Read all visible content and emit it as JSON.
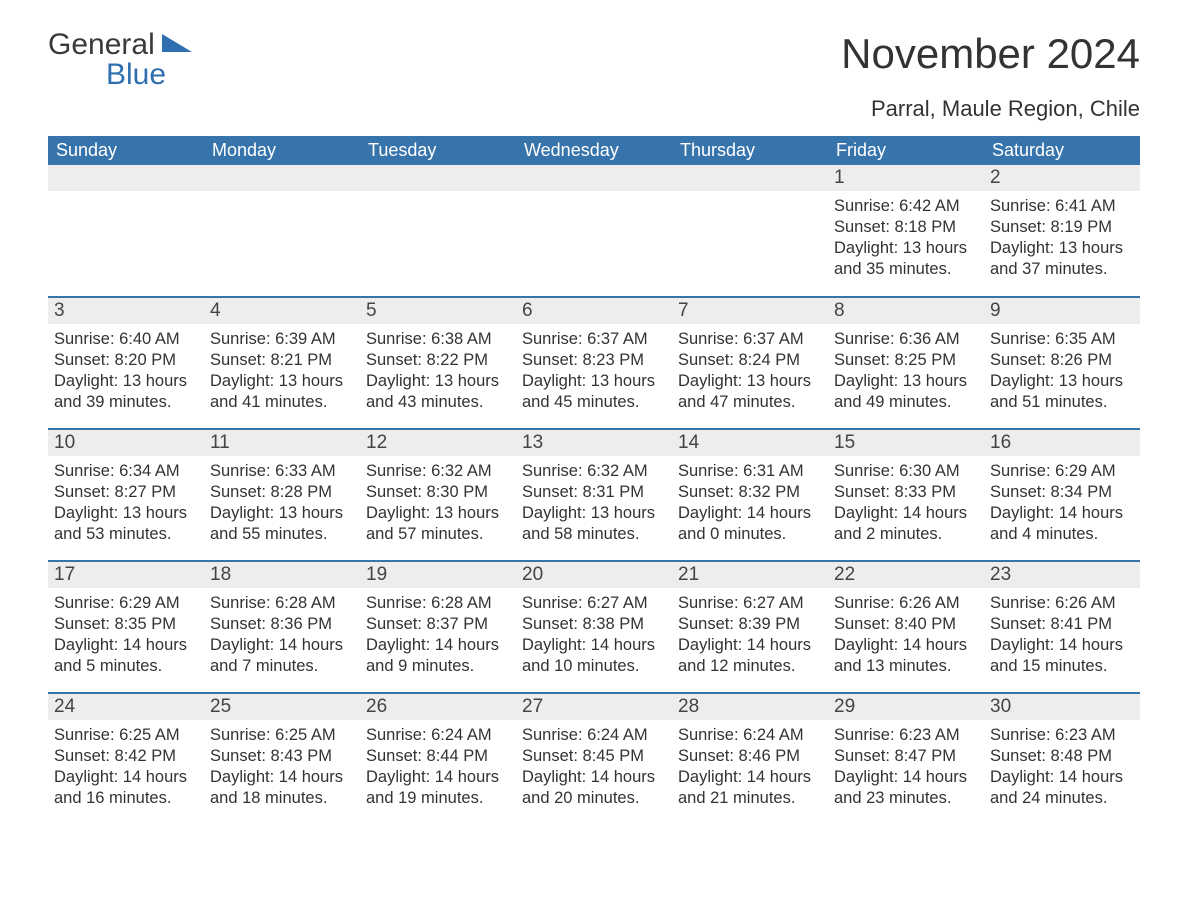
{
  "logo": {
    "word1": "General",
    "word2": "Blue"
  },
  "title": "November 2024",
  "location": "Parral, Maule Region, Chile",
  "colors": {
    "header_bg": "#3874ac",
    "header_text": "#ffffff",
    "daynum_bg": "#ededed",
    "border": "#3874ac",
    "logo_blue": "#2f6fb0",
    "body_text": "#333333"
  },
  "weekdays": [
    "Sunday",
    "Monday",
    "Tuesday",
    "Wednesday",
    "Thursday",
    "Friday",
    "Saturday"
  ],
  "weeks": [
    [
      null,
      null,
      null,
      null,
      null,
      {
        "n": "1",
        "sr": "6:42 AM",
        "ss": "8:18 PM",
        "dl": "13 hours and 35 minutes."
      },
      {
        "n": "2",
        "sr": "6:41 AM",
        "ss": "8:19 PM",
        "dl": "13 hours and 37 minutes."
      }
    ],
    [
      {
        "n": "3",
        "sr": "6:40 AM",
        "ss": "8:20 PM",
        "dl": "13 hours and 39 minutes."
      },
      {
        "n": "4",
        "sr": "6:39 AM",
        "ss": "8:21 PM",
        "dl": "13 hours and 41 minutes."
      },
      {
        "n": "5",
        "sr": "6:38 AM",
        "ss": "8:22 PM",
        "dl": "13 hours and 43 minutes."
      },
      {
        "n": "6",
        "sr": "6:37 AM",
        "ss": "8:23 PM",
        "dl": "13 hours and 45 minutes."
      },
      {
        "n": "7",
        "sr": "6:37 AM",
        "ss": "8:24 PM",
        "dl": "13 hours and 47 minutes."
      },
      {
        "n": "8",
        "sr": "6:36 AM",
        "ss": "8:25 PM",
        "dl": "13 hours and 49 minutes."
      },
      {
        "n": "9",
        "sr": "6:35 AM",
        "ss": "8:26 PM",
        "dl": "13 hours and 51 minutes."
      }
    ],
    [
      {
        "n": "10",
        "sr": "6:34 AM",
        "ss": "8:27 PM",
        "dl": "13 hours and 53 minutes."
      },
      {
        "n": "11",
        "sr": "6:33 AM",
        "ss": "8:28 PM",
        "dl": "13 hours and 55 minutes."
      },
      {
        "n": "12",
        "sr": "6:32 AM",
        "ss": "8:30 PM",
        "dl": "13 hours and 57 minutes."
      },
      {
        "n": "13",
        "sr": "6:32 AM",
        "ss": "8:31 PM",
        "dl": "13 hours and 58 minutes."
      },
      {
        "n": "14",
        "sr": "6:31 AM",
        "ss": "8:32 PM",
        "dl": "14 hours and 0 minutes."
      },
      {
        "n": "15",
        "sr": "6:30 AM",
        "ss": "8:33 PM",
        "dl": "14 hours and 2 minutes."
      },
      {
        "n": "16",
        "sr": "6:29 AM",
        "ss": "8:34 PM",
        "dl": "14 hours and 4 minutes."
      }
    ],
    [
      {
        "n": "17",
        "sr": "6:29 AM",
        "ss": "8:35 PM",
        "dl": "14 hours and 5 minutes."
      },
      {
        "n": "18",
        "sr": "6:28 AM",
        "ss": "8:36 PM",
        "dl": "14 hours and 7 minutes."
      },
      {
        "n": "19",
        "sr": "6:28 AM",
        "ss": "8:37 PM",
        "dl": "14 hours and 9 minutes."
      },
      {
        "n": "20",
        "sr": "6:27 AM",
        "ss": "8:38 PM",
        "dl": "14 hours and 10 minutes."
      },
      {
        "n": "21",
        "sr": "6:27 AM",
        "ss": "8:39 PM",
        "dl": "14 hours and 12 minutes."
      },
      {
        "n": "22",
        "sr": "6:26 AM",
        "ss": "8:40 PM",
        "dl": "14 hours and 13 minutes."
      },
      {
        "n": "23",
        "sr": "6:26 AM",
        "ss": "8:41 PM",
        "dl": "14 hours and 15 minutes."
      }
    ],
    [
      {
        "n": "24",
        "sr": "6:25 AM",
        "ss": "8:42 PM",
        "dl": "14 hours and 16 minutes."
      },
      {
        "n": "25",
        "sr": "6:25 AM",
        "ss": "8:43 PM",
        "dl": "14 hours and 18 minutes."
      },
      {
        "n": "26",
        "sr": "6:24 AM",
        "ss": "8:44 PM",
        "dl": "14 hours and 19 minutes."
      },
      {
        "n": "27",
        "sr": "6:24 AM",
        "ss": "8:45 PM",
        "dl": "14 hours and 20 minutes."
      },
      {
        "n": "28",
        "sr": "6:24 AM",
        "ss": "8:46 PM",
        "dl": "14 hours and 21 minutes."
      },
      {
        "n": "29",
        "sr": "6:23 AM",
        "ss": "8:47 PM",
        "dl": "14 hours and 23 minutes."
      },
      {
        "n": "30",
        "sr": "6:23 AM",
        "ss": "8:48 PM",
        "dl": "14 hours and 24 minutes."
      }
    ]
  ],
  "labels": {
    "sunrise": "Sunrise: ",
    "sunset": "Sunset: ",
    "daylight": "Daylight: "
  }
}
